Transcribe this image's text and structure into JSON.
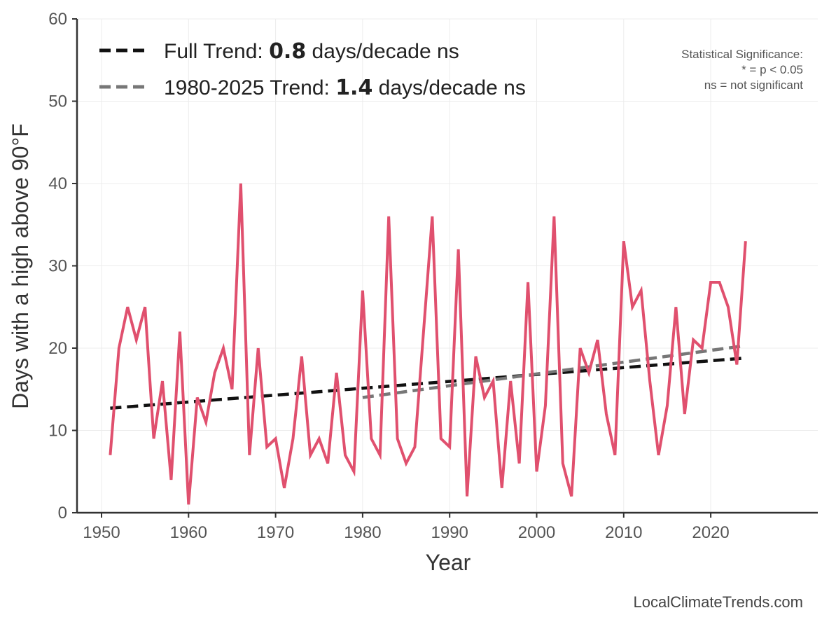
{
  "chart_data": {
    "type": "line",
    "title": "",
    "xlabel": "Year",
    "ylabel": "Days with a high above 90°F",
    "xlim": [
      1947.3,
      2028
    ],
    "ylim": [
      0,
      60
    ],
    "grid": true,
    "x_ticks": [
      1950,
      1960,
      1970,
      1980,
      1990,
      2000,
      2010,
      2020
    ],
    "y_ticks": [
      0,
      10,
      20,
      30,
      40,
      50,
      60
    ],
    "series": [
      {
        "name": "Days above 90°F",
        "color": "#e0506e",
        "x": [
          1951,
          1952,
          1953,
          1954,
          1955,
          1956,
          1957,
          1958,
          1959,
          1960,
          1961,
          1962,
          1963,
          1964,
          1965,
          1966,
          1967,
          1968,
          1969,
          1970,
          1971,
          1972,
          1973,
          1974,
          1975,
          1976,
          1977,
          1978,
          1979,
          1980,
          1981,
          1982,
          1983,
          1984,
          1985,
          1986,
          1987,
          1988,
          1989,
          1990,
          1991,
          1992,
          1993,
          1994,
          1995,
          1996,
          1997,
          1998,
          1999,
          2000,
          2001,
          2002,
          2003,
          2004,
          2005,
          2006,
          2007,
          2008,
          2009,
          2010,
          2011,
          2012,
          2013,
          2014,
          2015,
          2016,
          2017,
          2018,
          2019,
          2020,
          2021,
          2022,
          2023,
          2024
        ],
        "values": [
          7,
          20,
          25,
          21,
          25,
          9,
          16,
          4,
          22,
          1,
          14,
          11,
          17,
          20,
          15,
          40,
          7,
          20,
          8,
          9,
          3,
          9,
          19,
          7,
          9,
          6,
          17,
          7,
          5,
          27,
          9,
          7,
          36,
          9,
          6,
          8,
          22,
          36,
          9,
          8,
          32,
          2,
          19,
          14,
          16,
          3,
          16,
          6,
          28,
          5,
          13,
          36,
          6,
          2,
          20,
          17,
          21,
          12,
          7,
          33,
          25,
          27,
          16,
          7,
          13,
          25,
          12,
          21,
          20,
          28,
          28,
          25,
          18,
          33
        ]
      }
    ],
    "trends": [
      {
        "name": "Full Trend",
        "color": "#111111",
        "x": [
          1951,
          2024
        ],
        "values": [
          12.7,
          18.8
        ]
      },
      {
        "name": "1980-2025 Trend",
        "color": "#777777",
        "x": [
          1980,
          2024
        ],
        "values": [
          14.0,
          20.3
        ]
      }
    ],
    "legend": {
      "placement": "top-left",
      "items": [
        {
          "prefix": "Full Trend: ",
          "value": "0.8",
          "suffix": " days/decade ns"
        },
        {
          "prefix": "1980-2025 Trend: ",
          "value": "1.4",
          "suffix": " days/decade ns"
        }
      ]
    },
    "annotation": [
      "Statistical Significance:",
      "* = p < 0.05",
      "ns = not significant"
    ],
    "watermark": "LocalClimateTrends.com"
  }
}
